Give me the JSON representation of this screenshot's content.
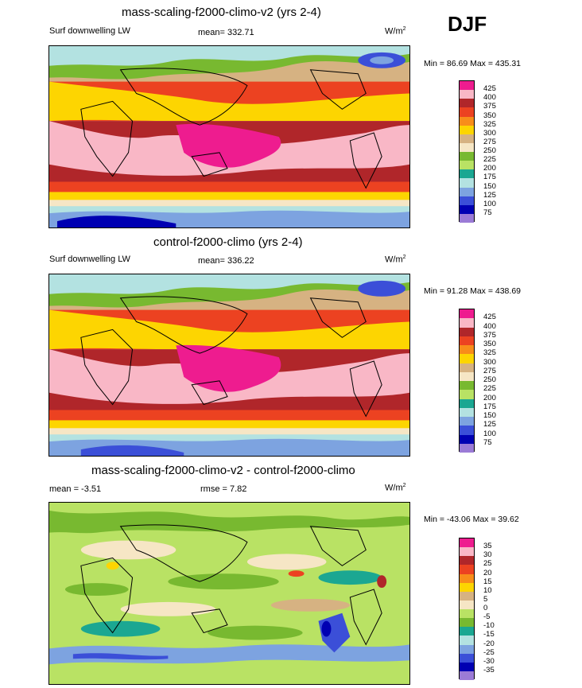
{
  "season": "DJF",
  "panels": [
    {
      "title": "mass-scaling-f2000-climo-v2 (yrs 2-4)",
      "left_label": "Surf downwelling LW",
      "center_label": "mean= 332.71",
      "units": "W/m",
      "units_sup": "2",
      "minmax": "Min =  86.69 Max = 435.31",
      "colorbar_ticks": [
        "425",
        "400",
        "375",
        "350",
        "325",
        "300",
        "275",
        "250",
        "225",
        "200",
        "175",
        "150",
        "125",
        "100",
        "75"
      ],
      "colorbar_colors": [
        "#ee1c8f",
        "#f9b7c6",
        "#b0262a",
        "#ec4221",
        "#f88d1a",
        "#fdd501",
        "#d6b282",
        "#f6e6c5",
        "#78b930",
        "#b9e264",
        "#1ba792",
        "#b3e2e1",
        "#7da3e0",
        "#3b4fd8",
        "#0000b2",
        "#9b7bd6"
      ]
    },
    {
      "title": "control-f2000-climo (yrs 2-4)",
      "left_label": "Surf downwelling LW",
      "center_label": "mean= 336.22",
      "units": "W/m",
      "units_sup": "2",
      "minmax": "Min =  91.28 Max = 438.69",
      "colorbar_ticks": [
        "425",
        "400",
        "375",
        "350",
        "325",
        "300",
        "275",
        "250",
        "225",
        "200",
        "175",
        "150",
        "125",
        "100",
        "75"
      ],
      "colorbar_colors": [
        "#ee1c8f",
        "#f9b7c6",
        "#b0262a",
        "#ec4221",
        "#f88d1a",
        "#fdd501",
        "#d6b282",
        "#f6e6c5",
        "#78b930",
        "#b9e264",
        "#1ba792",
        "#b3e2e1",
        "#7da3e0",
        "#3b4fd8",
        "#0000b2",
        "#9b7bd6"
      ]
    },
    {
      "title": "mass-scaling-f2000-climo-v2 - control-f2000-climo",
      "left_label": "mean =  -3.51",
      "center_label": "rmse =   7.82",
      "units": "W/m",
      "units_sup": "2",
      "minmax": "Min = -43.06 Max =  39.62",
      "colorbar_ticks": [
        "35",
        "30",
        "25",
        "20",
        "15",
        "10",
        "5",
        "0",
        "-5",
        "-10",
        "-15",
        "-20",
        "-25",
        "-30",
        "-35"
      ],
      "colorbar_colors": [
        "#ee1c8f",
        "#f9b7c6",
        "#b0262a",
        "#ec4221",
        "#f88d1a",
        "#fdd501",
        "#d6b282",
        "#f6e6c5",
        "#b9e264",
        "#78b930",
        "#1ba792",
        "#b3e2e1",
        "#7da3e0",
        "#3b4fd8",
        "#0000b2",
        "#9b7bd6"
      ]
    }
  ]
}
